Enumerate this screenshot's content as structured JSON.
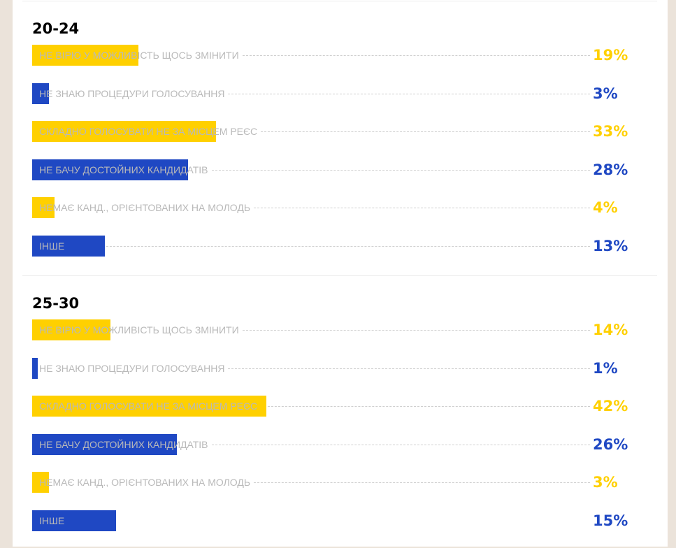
{
  "colors": {
    "yellow": "#ffd000",
    "blue": "#1f48c3",
    "background": "#ebe3da"
  },
  "chart_data": [
    {
      "type": "bar",
      "title": "20-24",
      "orientation": "horizontal",
      "unit": "%",
      "categories": [
        "НЕ ВІРЮ У МОЖЛИВІСТЬ ЩОСЬ ЗМІНИТИ",
        "НЕ ЗНАЮ ПРОЦЕДУРИ ГОЛОСУВАННЯ",
        "СКЛАДНО ГОЛОСУВАТИ НЕ ЗА МІСЦЕМ РЕЄС",
        "НЕ БАЧУ ДОСТОЙНИХ КАНДИДАТІВ",
        "НЕМАЄ КАНД., ОРІЄНТОВАНИХ НА МОЛОДЬ",
        "ІНШЕ"
      ],
      "values": [
        19,
        3,
        33,
        28,
        4,
        13
      ],
      "value_labels": [
        "19%",
        "3%",
        "33%",
        "28%",
        "4%",
        "13%"
      ],
      "bar_colors": [
        "yellow",
        "blue",
        "yellow",
        "blue",
        "yellow",
        "blue"
      ]
    },
    {
      "type": "bar",
      "title": "25-30",
      "orientation": "horizontal",
      "unit": "%",
      "categories": [
        "НЕ ВІРЮ У МОЖЛИВІСТЬ ЩОСЬ ЗМІНИТИ",
        "НЕ ЗНАЮ ПРОЦЕДУРИ ГОЛОСУВАННЯ",
        "СКЛАДНО ГОЛОСУВАТИ НЕ ЗА МІСЦЕМ РЕЄС",
        "НЕ БАЧУ ДОСТОЙНИХ КАНДИДАТІВ",
        "НЕМАЄ КАНД., ОРІЄНТОВАНИХ НА МОЛОДЬ",
        "ІНШЕ"
      ],
      "values": [
        14,
        1,
        42,
        26,
        3,
        15
      ],
      "value_labels": [
        "14%",
        "1%",
        "42%",
        "26%",
        "3%",
        "15%"
      ],
      "bar_colors": [
        "yellow",
        "blue",
        "yellow",
        "blue",
        "yellow",
        "blue"
      ]
    }
  ]
}
